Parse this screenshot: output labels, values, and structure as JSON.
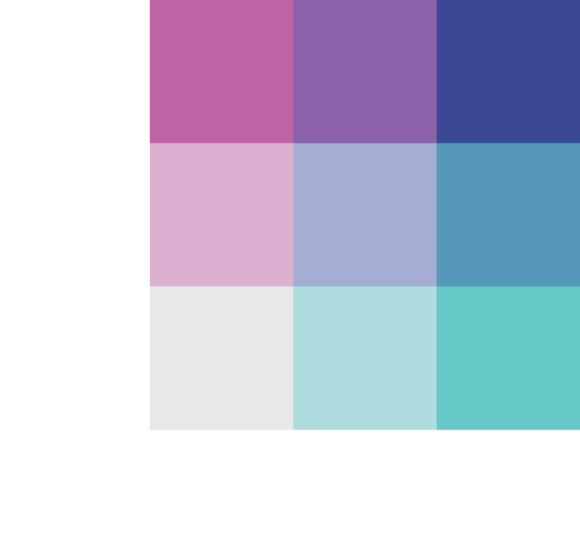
{
  "chart_data": {
    "type": "heatmap",
    "rows": 3,
    "cols": 3,
    "colors": [
      [
        "#be64a5",
        "#8c62aa",
        "#3b4994"
      ],
      [
        "#dcb0d1",
        "#a5add3",
        "#5698b9"
      ],
      [
        "#e8e8e8",
        "#aedcdf",
        "#66c8c7"
      ]
    ]
  }
}
